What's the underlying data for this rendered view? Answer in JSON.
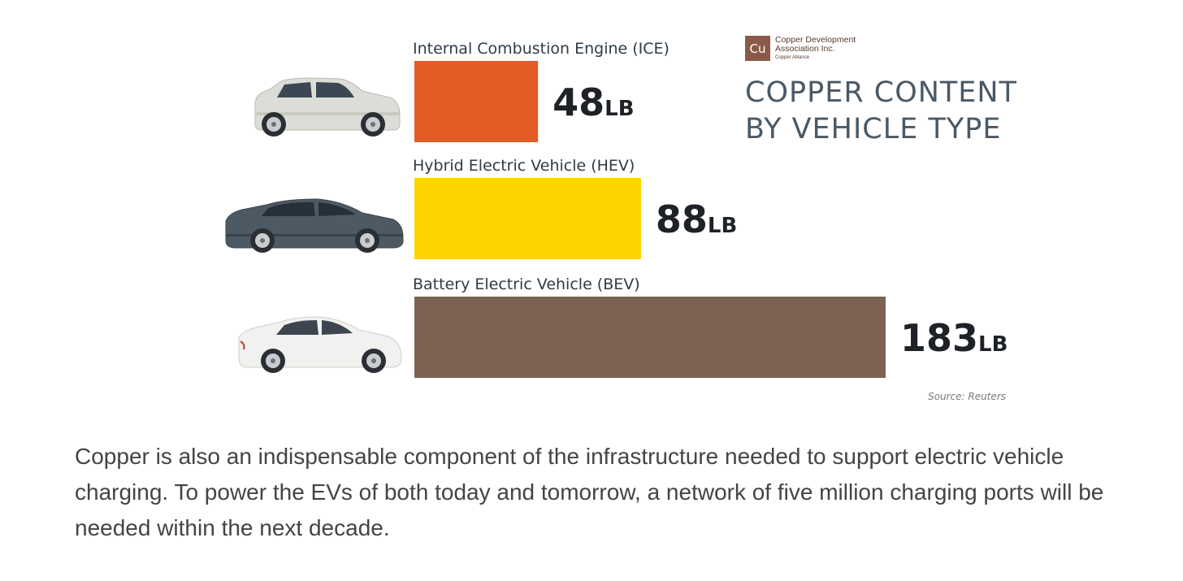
{
  "chart_data": {
    "type": "bar",
    "orientation": "horizontal",
    "title_lines": [
      "COPPER CONTENT",
      "BY VEHICLE TYPE"
    ],
    "categories": [
      "Internal Combustion Engine (ICE)",
      "Hybrid Electric Vehicle (HEV)",
      "Battery Electric Vehicle (BEV)"
    ],
    "values": [
      48,
      88,
      183
    ],
    "unit": "LB",
    "value_labels": [
      "48",
      "88",
      "183"
    ],
    "colors": [
      "#e35b25",
      "#fdd300",
      "#7c6252"
    ],
    "icons": [
      "small-hatchback-car-icon",
      "dark-sedan-car-icon",
      "white-electric-sedan-car-icon"
    ],
    "source": "Source: Reuters"
  },
  "logo": {
    "symbol": "Cu",
    "line1": "Copper Development",
    "line2": "Association Inc.",
    "line3": "Copper Alliance"
  },
  "caption": "Copper is also an indispensable component of the infrastructure needed to support electric vehicle charging. To power the EVs of both today and tomorrow, a network of five million charging ports will be needed within the next decade."
}
